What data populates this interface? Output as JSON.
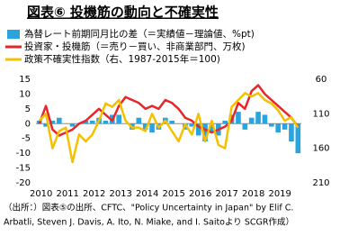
{
  "chart_data": {
    "type": "bar-line",
    "title": "図表⑥ 投機筋の動向と不確実性",
    "categories": [
      "2010",
      null,
      null,
      null,
      "2011",
      null,
      null,
      null,
      "2012",
      null,
      null,
      null,
      "2013",
      null,
      null,
      null,
      "2014",
      null,
      null,
      null,
      "2015",
      null,
      null,
      null,
      "2016",
      null,
      null,
      null,
      "2017",
      null,
      null,
      null,
      "2018",
      null,
      null,
      null,
      "2019",
      null,
      null,
      null
    ],
    "series": [
      {
        "name": "為替レート前期同月比の差（＝実績値－理論値、%pt)",
        "kind": "bar",
        "color": "#2aa4dc",
        "values": [
          1,
          -1,
          1,
          2,
          0,
          -1,
          0,
          1,
          1,
          2,
          1,
          3,
          3,
          0,
          -2,
          2,
          -2,
          -3,
          -2,
          2,
          1,
          0,
          -2,
          -1,
          -4,
          -6,
          -3,
          -4,
          1,
          3,
          4,
          -2,
          2,
          4,
          3,
          -1,
          -3,
          -2,
          -6,
          -10
        ]
      },
      {
        "name": "投資家・投機筋（＝売り－買い、非商業部門、万枚)",
        "kind": "line",
        "color": "#e8262a",
        "values": [
          0,
          6,
          -2,
          -4,
          -3,
          -2,
          0,
          1,
          3,
          5,
          3,
          1,
          6,
          9,
          8,
          7,
          5,
          6,
          5,
          8,
          7,
          5,
          2,
          1,
          -1,
          -2,
          -3,
          -2,
          -1,
          1,
          7,
          5,
          11,
          13,
          10,
          8,
          6,
          4,
          2,
          -1
        ]
      },
      {
        "name": "政策不確実性指数（右、1987-2015年＝100)",
        "kind": "line",
        "axis": "y2",
        "color": "#f5c000",
        "values": [
          120,
          110,
          160,
          135,
          130,
          180,
          140,
          150,
          140,
          120,
          95,
          100,
          90,
          120,
          130,
          130,
          135,
          110,
          130,
          120,
          135,
          150,
          125,
          140,
          110,
          150,
          120,
          155,
          160,
          100,
          90,
          80,
          85,
          80,
          90,
          95,
          105,
          120,
          115,
          130
        ]
      }
    ],
    "ylim": [
      -20,
      15
    ],
    "yticks": [
      15,
      10,
      5,
      0,
      -5,
      -10,
      -15,
      -20
    ],
    "y2lim": [
      210,
      60
    ],
    "y2ticks": [
      60,
      110,
      160,
      210
    ],
    "footnote": [
      "（出所：）図表⑤の出所、CFTC、\"Policy Uncertainty in Japan\" by Elif C.",
      "Arbatli, Steven J. Davis, A. Ito, N. Miake, and I. Saitoより SCGR作成）"
    ]
  }
}
